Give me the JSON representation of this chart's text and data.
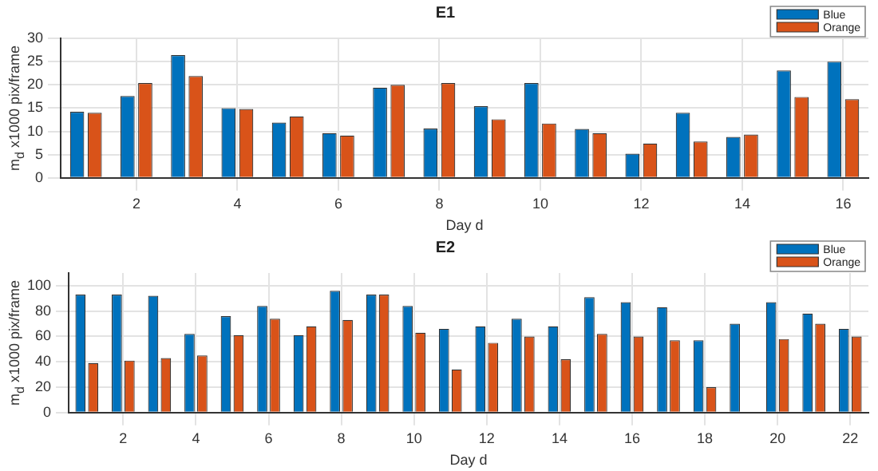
{
  "chart_data": [
    {
      "type": "bar",
      "title": "E1",
      "xlabel": "Day d",
      "ylabel": "m$_{d}$ x1000 pix/frame",
      "x": [
        1,
        2,
        3,
        4,
        5,
        6,
        7,
        8,
        9,
        10,
        11,
        12,
        13,
        14,
        15,
        16
      ],
      "xlim": [
        0.5,
        16.5
      ],
      "xticks": [
        2,
        4,
        6,
        8,
        10,
        12,
        14,
        16
      ],
      "ylim": [
        0,
        30
      ],
      "yticks": [
        0,
        5,
        10,
        15,
        20,
        25,
        30
      ],
      "grid": true,
      "legend": "top right",
      "series": [
        {
          "name": "Blue",
          "color": "#0072bd",
          "values": [
            14.2,
            17.6,
            26.4,
            15,
            11.9,
            9.6,
            19.4,
            10.6,
            15.4,
            20.4,
            10.5,
            5.2,
            14,
            8.8,
            23.1,
            25
          ]
        },
        {
          "name": "Orange",
          "color": "#d95319",
          "values": [
            14,
            20.4,
            21.9,
            14.8,
            13.2,
            9.1,
            20,
            20.4,
            12.6,
            11.7,
            9.6,
            7.4,
            7.8,
            9.3,
            17.4,
            16.9
          ]
        }
      ]
    },
    {
      "type": "bar",
      "title": "E2",
      "xlabel": "Day d",
      "ylabel": "m$_{d}$ x1000 pix/frame",
      "x": [
        1,
        2,
        3,
        4,
        5,
        6,
        7,
        8,
        9,
        10,
        11,
        12,
        13,
        14,
        15,
        16,
        17,
        18,
        19,
        20,
        21,
        22
      ],
      "xlim": [
        0.5,
        22.5
      ],
      "xticks": [
        2,
        4,
        6,
        8,
        10,
        12,
        14,
        16,
        18,
        20,
        22
      ],
      "ylim": [
        0,
        110
      ],
      "yticks": [
        0,
        20,
        40,
        60,
        80,
        100
      ],
      "grid": true,
      "legend": "top right",
      "series": [
        {
          "name": "Blue",
          "color": "#0072bd",
          "values": [
            93,
            93,
            92,
            62,
            76,
            84,
            61,
            96,
            93,
            84,
            66,
            68,
            74,
            68,
            91,
            87,
            83,
            57,
            70,
            87,
            78,
            66
          ]
        },
        {
          "name": "Orange",
          "color": "#d95319",
          "values": [
            39,
            41,
            43,
            45,
            61,
            74,
            68,
            73,
            93,
            63,
            34,
            55,
            60,
            42,
            62,
            60,
            57,
            20,
            null,
            58,
            70,
            60
          ]
        }
      ]
    }
  ]
}
